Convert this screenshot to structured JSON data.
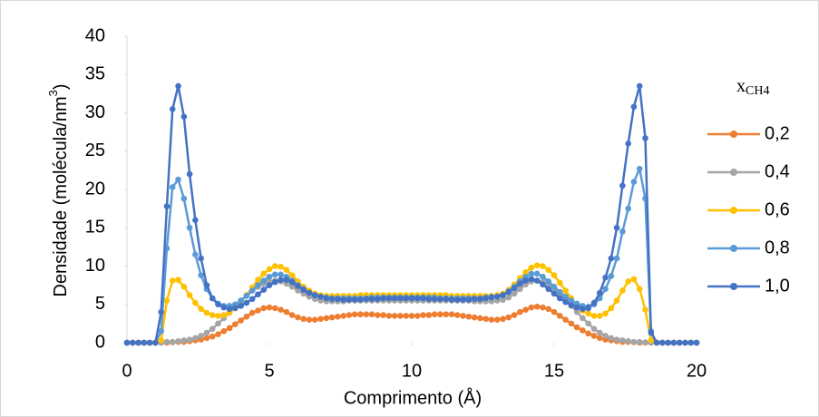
{
  "chart_data": {
    "type": "line",
    "xlabel": "Comprimento (Å)",
    "ylabel": {
      "main": "Densidade (molécula/nm",
      "sup": "3",
      "end": ")"
    },
    "legend_title": {
      "main": "x",
      "sub": "CH4"
    },
    "legend_position": "right",
    "grid": false,
    "xlim": [
      0,
      20
    ],
    "xticks": [
      0,
      5,
      10,
      15,
      20
    ],
    "ylim": [
      0,
      40
    ],
    "yticks": [
      0,
      5,
      10,
      15,
      20,
      25,
      30,
      35,
      40
    ],
    "x": [
      0,
      0.2,
      0.4,
      0.6,
      0.8,
      1,
      1.2,
      1.4,
      1.6,
      1.8,
      2,
      2.2,
      2.4,
      2.6,
      2.8,
      3,
      3.2,
      3.4,
      3.6,
      3.8,
      4,
      4.2,
      4.4,
      4.6,
      4.8,
      5,
      5.2,
      5.4,
      5.6,
      5.8,
      6,
      6.2,
      6.4,
      6.6,
      6.8,
      7,
      7.2,
      7.4,
      7.6,
      7.8,
      8,
      8.2,
      8.4,
      8.6,
      8.8,
      9,
      9.2,
      9.4,
      9.6,
      9.8,
      10,
      10.2,
      10.4,
      10.6,
      10.8,
      11,
      11.2,
      11.4,
      11.6,
      11.8,
      12,
      12.2,
      12.4,
      12.6,
      12.8,
      13,
      13.2,
      13.4,
      13.6,
      13.8,
      14,
      14.2,
      14.4,
      14.6,
      14.8,
      15,
      15.2,
      15.4,
      15.6,
      15.8,
      16,
      16.2,
      16.4,
      16.6,
      16.8,
      17,
      17.2,
      17.4,
      17.6,
      17.8,
      18,
      18.2,
      18.4,
      18.6,
      18.8,
      19,
      19.2,
      19.4,
      19.6,
      19.8,
      20
    ],
    "series": [
      {
        "name": "0,2",
        "color": "#ed7d31",
        "values": [
          0,
          0,
          0,
          0,
          0,
          0,
          0,
          0,
          0.05,
          0.1,
          0.1,
          0.2,
          0.3,
          0.4,
          0.6,
          0.8,
          1.1,
          1.5,
          1.9,
          2.4,
          2.9,
          3.4,
          3.9,
          4.2,
          4.5,
          4.6,
          4.5,
          4.3,
          4,
          3.6,
          3.3,
          3.1,
          3,
          3,
          3.1,
          3.2,
          3.3,
          3.4,
          3.5,
          3.6,
          3.7,
          3.7,
          3.7,
          3.7,
          3.6,
          3.6,
          3.5,
          3.5,
          3.5,
          3.5,
          3.5,
          3.5,
          3.6,
          3.6,
          3.7,
          3.7,
          3.7,
          3.7,
          3.6,
          3.5,
          3.4,
          3.3,
          3.2,
          3.1,
          3,
          3,
          3.1,
          3.3,
          3.6,
          4,
          4.3,
          4.6,
          4.7,
          4.6,
          4.4,
          4,
          3.5,
          3,
          2.5,
          2,
          1.6,
          1.2,
          0.9,
          0.6,
          0.4,
          0.3,
          0.2,
          0.1,
          0.1,
          0.05,
          0,
          0,
          0,
          0,
          0,
          0,
          0,
          0,
          0,
          0,
          0
        ]
      },
      {
        "name": "0,4",
        "color": "#a5a5a5",
        "values": [
          0,
          0,
          0,
          0,
          0,
          0,
          0,
          0.1,
          0.1,
          0.2,
          0.3,
          0.4,
          0.6,
          0.9,
          1.3,
          1.8,
          2.5,
          3.2,
          4,
          4.8,
          5.5,
          6.2,
          6.8,
          7.3,
          7.7,
          8,
          8.1,
          8,
          7.7,
          7.3,
          6.8,
          6.4,
          6,
          5.7,
          5.5,
          5.4,
          5.4,
          5.4,
          5.4,
          5.5,
          5.5,
          5.5,
          5.5,
          5.5,
          5.5,
          5.5,
          5.5,
          5.5,
          5.5,
          5.5,
          5.5,
          5.5,
          5.5,
          5.5,
          5.5,
          5.5,
          5.5,
          5.5,
          5.5,
          5.5,
          5.5,
          5.4,
          5.4,
          5.4,
          5.4,
          5.5,
          5.6,
          5.9,
          6.4,
          7,
          7.6,
          8,
          8.1,
          7.9,
          7.5,
          6.9,
          6.2,
          5.5,
          4.8,
          4,
          3.2,
          2.5,
          1.8,
          1.3,
          0.9,
          0.6,
          0.4,
          0.3,
          0.2,
          0.1,
          0.1,
          0.05,
          0,
          0,
          0,
          0,
          0,
          0,
          0,
          0,
          0
        ]
      },
      {
        "name": "0,6",
        "color": "#ffc000",
        "values": [
          0,
          0,
          0,
          0,
          0,
          0,
          0.3,
          5.5,
          8.1,
          8.2,
          7.3,
          6.2,
          5.2,
          4.4,
          3.9,
          3.6,
          3.5,
          3.6,
          3.9,
          4.5,
          5.3,
          6.2,
          7.2,
          8.2,
          9,
          9.6,
          10,
          9.9,
          9.5,
          8.8,
          8,
          7.3,
          6.8,
          6.4,
          6.2,
          6.1,
          6.1,
          6.1,
          6.1,
          6.1,
          6.1,
          6.2,
          6.2,
          6.2,
          6.2,
          6.2,
          6.2,
          6.2,
          6.2,
          6.2,
          6.2,
          6.2,
          6.2,
          6.2,
          6.2,
          6.2,
          6.2,
          6.1,
          6.1,
          6.1,
          6.1,
          6.1,
          6.1,
          6.1,
          6.1,
          6.2,
          6.4,
          6.9,
          7.6,
          8.4,
          9.2,
          9.8,
          10.1,
          10,
          9.5,
          8.8,
          7.8,
          6.8,
          5.8,
          4.9,
          4.2,
          3.8,
          3.5,
          3.5,
          3.8,
          4.5,
          5.5,
          6.8,
          8,
          8.3,
          7,
          4.3,
          0.3,
          0,
          0,
          0,
          0,
          0,
          0,
          0,
          0
        ]
      },
      {
        "name": "0,8",
        "color": "#5b9bd5",
        "values": [
          0,
          0,
          0,
          0,
          0,
          0,
          1.5,
          12.3,
          20.3,
          21.3,
          18.8,
          15,
          11.5,
          8.8,
          7,
          5.8,
          5.1,
          4.8,
          4.8,
          5,
          5.5,
          6.1,
          6.8,
          7.5,
          8.1,
          8.6,
          8.9,
          8.9,
          8.6,
          8.1,
          7.5,
          7,
          6.5,
          6.2,
          6,
          5.9,
          5.8,
          5.8,
          5.8,
          5.8,
          5.8,
          5.8,
          5.8,
          5.9,
          5.9,
          5.9,
          5.9,
          5.9,
          5.9,
          5.9,
          5.9,
          5.9,
          5.9,
          5.9,
          5.9,
          5.8,
          5.8,
          5.8,
          5.8,
          5.8,
          5.8,
          5.8,
          5.8,
          5.9,
          6,
          6,
          6.2,
          6.7,
          7.3,
          8,
          8.6,
          9,
          9,
          8.6,
          8,
          7.3,
          6.6,
          6,
          5.5,
          5.1,
          4.8,
          4.7,
          5,
          5.8,
          7,
          8.7,
          11,
          14.5,
          17.5,
          21,
          22.7,
          18.8,
          1.5,
          0,
          0,
          0,
          0,
          0,
          0,
          0,
          0
        ]
      },
      {
        "name": "1,0",
        "color": "#4472c4",
        "values": [
          0,
          0,
          0,
          0,
          0,
          0,
          4,
          17.8,
          30.5,
          33.5,
          29.5,
          22,
          16,
          11,
          7.5,
          5.8,
          5,
          4.6,
          4.4,
          4.5,
          4.8,
          5.2,
          5.7,
          6.3,
          6.9,
          7.5,
          7.9,
          8.2,
          8.2,
          7.9,
          7.4,
          6.9,
          6.5,
          6.2,
          6,
          5.8,
          5.7,
          5.7,
          5.6,
          5.6,
          5.6,
          5.6,
          5.7,
          5.7,
          5.7,
          5.8,
          5.8,
          5.8,
          5.8,
          5.8,
          5.8,
          5.8,
          5.8,
          5.7,
          5.7,
          5.7,
          5.7,
          5.6,
          5.6,
          5.6,
          5.6,
          5.7,
          5.7,
          5.8,
          5.9,
          6,
          6.2,
          6.6,
          7.1,
          7.7,
          8.1,
          8.3,
          8.1,
          7.6,
          7,
          6.4,
          5.8,
          5.3,
          4.9,
          4.6,
          4.4,
          4.5,
          5.2,
          6.5,
          8.5,
          11,
          15,
          20.5,
          26,
          30.8,
          33.5,
          26.7,
          1.3,
          0,
          0,
          0,
          0,
          0,
          0,
          0,
          0
        ]
      }
    ]
  }
}
